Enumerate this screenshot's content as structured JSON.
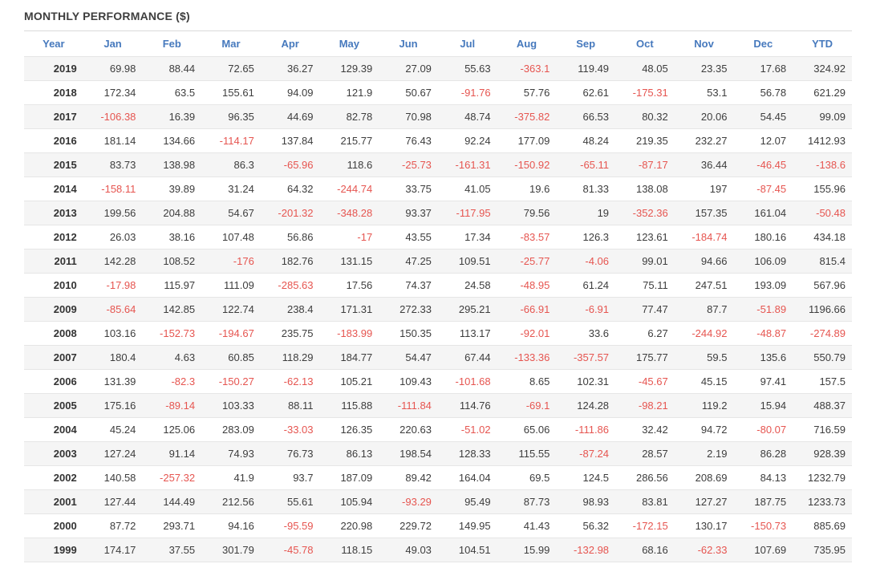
{
  "title": "MONTHLY PERFORMANCE ($)",
  "colors": {
    "title_text": "#3e3e3e",
    "header_text": "#4679bd",
    "positive_value": "#3d3d3d",
    "negative_value": "#e65550",
    "stripe_row": "#f5f5f5",
    "row_border": "#e6e6e6",
    "title_rule": "#d9d9d9"
  },
  "chart_data": {
    "type": "table",
    "title": "MONTHLY PERFORMANCE ($)",
    "columns": [
      "Year",
      "Jan",
      "Feb",
      "Mar",
      "Apr",
      "May",
      "Jun",
      "Jul",
      "Aug",
      "Sep",
      "Oct",
      "Nov",
      "Dec",
      "YTD"
    ],
    "rows": [
      [
        2019,
        69.98,
        88.44,
        72.65,
        36.27,
        129.39,
        27.09,
        55.63,
        -363.1,
        119.49,
        48.05,
        23.35,
        17.68,
        324.92
      ],
      [
        2018,
        172.34,
        63.5,
        155.61,
        94.09,
        121.9,
        50.67,
        -91.76,
        57.76,
        62.61,
        -175.31,
        53.1,
        56.78,
        621.29
      ],
      [
        2017,
        -106.38,
        16.39,
        96.35,
        44.69,
        82.78,
        70.98,
        48.74,
        -375.82,
        66.53,
        80.32,
        20.06,
        54.45,
        99.09
      ],
      [
        2016,
        181.14,
        134.66,
        -114.17,
        137.84,
        215.77,
        76.43,
        92.24,
        177.09,
        48.24,
        219.35,
        232.27,
        12.07,
        1412.93
      ],
      [
        2015,
        83.73,
        138.98,
        86.3,
        -65.96,
        118.6,
        -25.73,
        -161.31,
        -150.92,
        -65.11,
        -87.17,
        36.44,
        -46.45,
        -138.6
      ],
      [
        2014,
        -158.11,
        39.89,
        31.24,
        64.32,
        -244.74,
        33.75,
        41.05,
        19.6,
        81.33,
        138.08,
        197,
        -87.45,
        155.96
      ],
      [
        2013,
        199.56,
        204.88,
        54.67,
        -201.32,
        -348.28,
        93.37,
        -117.95,
        79.56,
        19,
        -352.36,
        157.35,
        161.04,
        -50.48
      ],
      [
        2012,
        26.03,
        38.16,
        107.48,
        56.86,
        -17,
        43.55,
        17.34,
        -83.57,
        126.3,
        123.61,
        -184.74,
        180.16,
        434.18
      ],
      [
        2011,
        142.28,
        108.52,
        -176,
        182.76,
        131.15,
        47.25,
        109.51,
        -25.77,
        -4.06,
        99.01,
        94.66,
        106.09,
        815.4
      ],
      [
        2010,
        -17.98,
        115.97,
        111.09,
        -285.63,
        17.56,
        74.37,
        24.58,
        -48.95,
        61.24,
        75.11,
        247.51,
        193.09,
        567.96
      ],
      [
        2009,
        -85.64,
        142.85,
        122.74,
        238.4,
        171.31,
        272.33,
        295.21,
        -66.91,
        -6.91,
        77.47,
        87.7,
        -51.89,
        1196.66
      ],
      [
        2008,
        103.16,
        -152.73,
        -194.67,
        235.75,
        -183.99,
        150.35,
        113.17,
        -92.01,
        33.6,
        6.27,
        -244.92,
        -48.87,
        -274.89
      ],
      [
        2007,
        180.4,
        4.63,
        60.85,
        118.29,
        184.77,
        54.47,
        67.44,
        -133.36,
        -357.57,
        175.77,
        59.5,
        135.6,
        550.79
      ],
      [
        2006,
        131.39,
        -82.3,
        -150.27,
        -62.13,
        105.21,
        109.43,
        -101.68,
        8.65,
        102.31,
        -45.67,
        45.15,
        97.41,
        157.5
      ],
      [
        2005,
        175.16,
        -89.14,
        103.33,
        88.11,
        115.88,
        -111.84,
        114.76,
        -69.1,
        124.28,
        -98.21,
        119.2,
        15.94,
        488.37
      ],
      [
        2004,
        45.24,
        125.06,
        283.09,
        -33.03,
        126.35,
        220.63,
        -51.02,
        65.06,
        -111.86,
        32.42,
        94.72,
        -80.07,
        716.59
      ],
      [
        2003,
        127.24,
        91.14,
        74.93,
        76.73,
        86.13,
        198.54,
        128.33,
        115.55,
        -87.24,
        28.57,
        2.19,
        86.28,
        928.39
      ],
      [
        2002,
        140.58,
        -257.32,
        41.9,
        93.7,
        187.09,
        89.42,
        164.04,
        69.5,
        124.5,
        286.56,
        208.69,
        84.13,
        1232.79
      ],
      [
        2001,
        127.44,
        144.49,
        212.56,
        55.61,
        105.94,
        -93.29,
        95.49,
        87.73,
        98.93,
        83.81,
        127.27,
        187.75,
        1233.73
      ],
      [
        2000,
        87.72,
        293.71,
        94.16,
        -95.59,
        220.98,
        229.72,
        149.95,
        41.43,
        56.32,
        -172.15,
        130.17,
        -150.73,
        885.69
      ],
      [
        1999,
        174.17,
        37.55,
        301.79,
        -45.78,
        118.15,
        49.03,
        104.51,
        15.99,
        -132.98,
        68.16,
        -62.33,
        107.69,
        735.95
      ]
    ]
  }
}
